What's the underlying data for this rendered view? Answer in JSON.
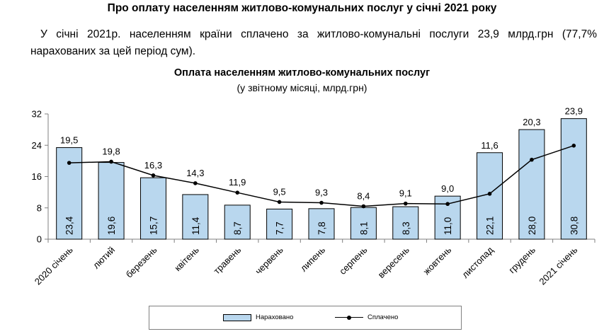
{
  "heading": "Про оплату населенням житлово-комунальних послуг у січні 2021 року",
  "paragraph": "У січні 2021р. населенням країни сплачено за житлово-комунальні послуги 23,9 млрд.грн (77,7% нарахованих за цей період сум).",
  "chart_data": {
    "type": "bar",
    "title": "Оплата населенням житлово-комунальних послуг",
    "subtitle": "(у звітному місяці, млрд.грн)",
    "categories": [
      "2020 січень",
      "лютий",
      "березень",
      "квітень",
      "травень",
      "червень",
      "липень",
      "серпень",
      "вересень",
      "жовтень",
      "листопад",
      "грудень",
      "2021 січень"
    ],
    "ylim": [
      0,
      32
    ],
    "yticks": [
      0,
      8,
      16,
      24,
      32
    ],
    "grid": false,
    "legend_position": "bottom",
    "series": [
      {
        "name": "Нараховано",
        "type": "bar",
        "color": "#b9d7ee",
        "values": [
          23.4,
          19.6,
          15.7,
          11.4,
          8.7,
          7.7,
          7.8,
          8.1,
          8.3,
          11.0,
          22.1,
          28.0,
          30.8
        ],
        "labels": [
          "23,4",
          "19,6",
          "15,7",
          "11,4",
          "8,7",
          "7,7",
          "7,8",
          "8,1",
          "8,3",
          "11,0",
          "22,1",
          "28,0",
          "30,8"
        ]
      },
      {
        "name": "Сплачено",
        "type": "line",
        "color": "#000000",
        "values": [
          19.5,
          19.8,
          16.3,
          14.3,
          11.9,
          9.5,
          9.3,
          8.4,
          9.1,
          9.0,
          11.6,
          20.3,
          23.9
        ],
        "labels": [
          "19,5",
          "19,8",
          "16,3",
          "14,3",
          "11,9",
          "9,5",
          "9,3",
          "8,4",
          "9,1",
          "9,0",
          "11,6",
          "20,3",
          "23,9"
        ]
      }
    ]
  }
}
